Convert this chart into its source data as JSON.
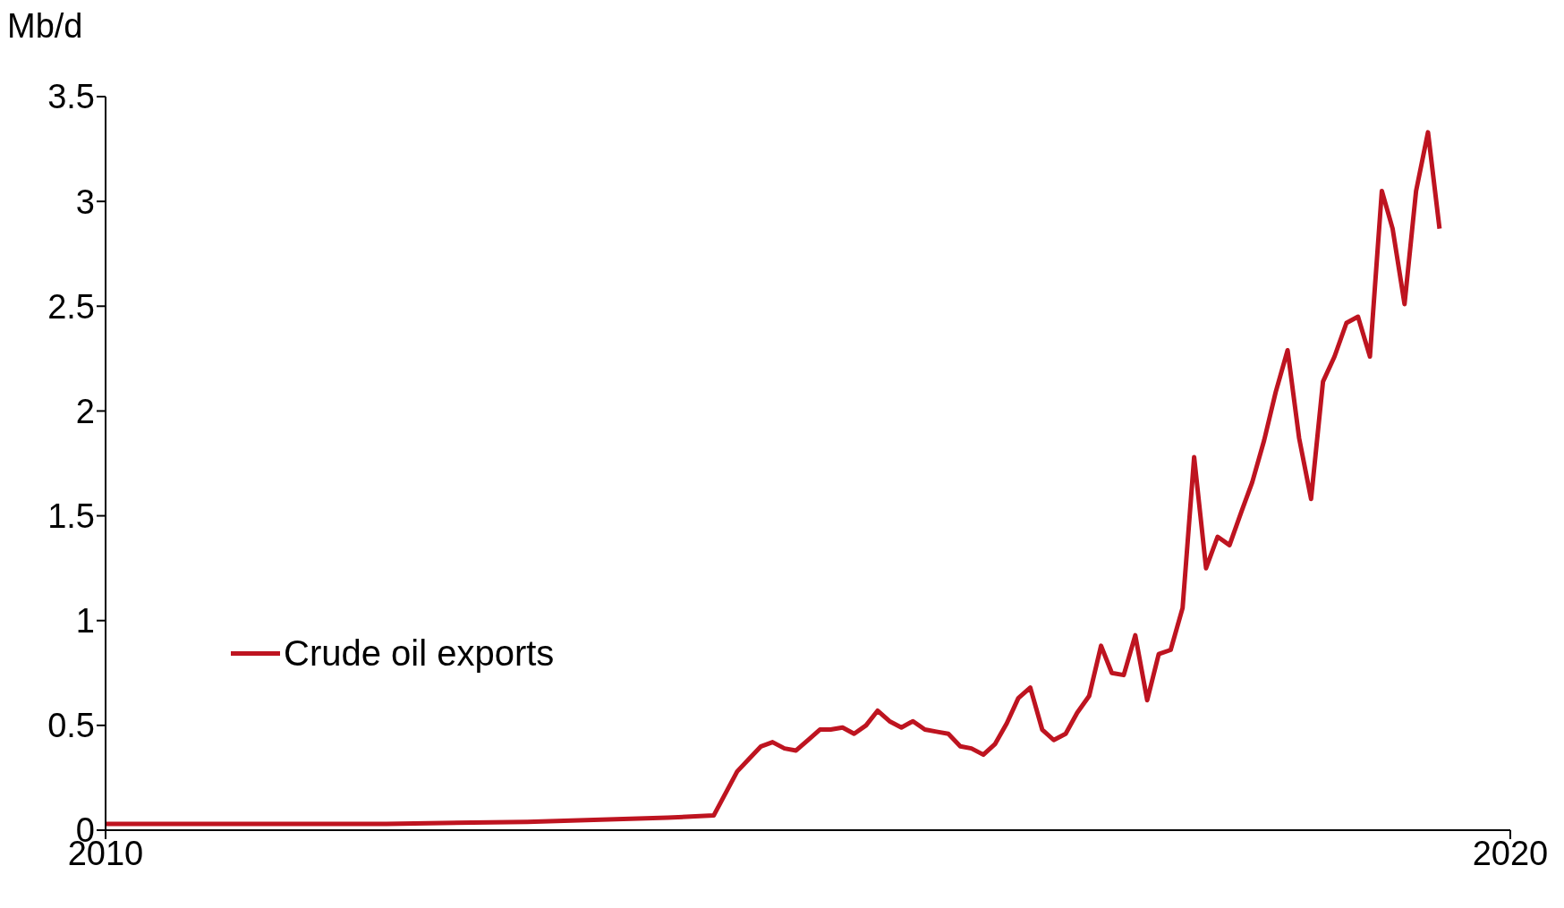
{
  "chart_data": {
    "type": "line",
    "ylabel": "Mb/d",
    "x": [
      "2010-01",
      "2011-01",
      "2012-01",
      "2013-01",
      "2014-01",
      "2014-05",
      "2014-07",
      "2014-08",
      "2014-09",
      "2014-10",
      "2014-11",
      "2014-12",
      "2015-01",
      "2015-02",
      "2015-03",
      "2015-04",
      "2015-05",
      "2015-06",
      "2015-07",
      "2015-08",
      "2015-09",
      "2015-10",
      "2015-11",
      "2015-12",
      "2016-01",
      "2016-02",
      "2016-03",
      "2016-04",
      "2016-05",
      "2016-06",
      "2016-07",
      "2016-08",
      "2016-09",
      "2016-10",
      "2016-11",
      "2016-12",
      "2017-01",
      "2017-02",
      "2017-03",
      "2017-04",
      "2017-05",
      "2017-06",
      "2017-07",
      "2017-08",
      "2017-09",
      "2017-10",
      "2017-11",
      "2017-12",
      "2018-01",
      "2018-02",
      "2018-03",
      "2018-04",
      "2018-05",
      "2018-06",
      "2018-07",
      "2018-08",
      "2018-09",
      "2018-10",
      "2018-11",
      "2018-12",
      "2019-01",
      "2019-02",
      "2019-03",
      "2019-04",
      "2019-05",
      "2019-06",
      "2019-07"
    ],
    "series": [
      {
        "name": "Crude oil exports",
        "color": "#be1420",
        "values": [
          0.03,
          0.03,
          0.03,
          0.04,
          0.06,
          0.07,
          0.28,
          0.34,
          0.4,
          0.42,
          0.39,
          0.38,
          0.43,
          0.48,
          0.48,
          0.49,
          0.46,
          0.5,
          0.57,
          0.52,
          0.49,
          0.52,
          0.48,
          0.47,
          0.46,
          0.4,
          0.39,
          0.36,
          0.41,
          0.51,
          0.63,
          0.68,
          0.48,
          0.43,
          0.46,
          0.56,
          0.64,
          0.88,
          0.75,
          0.74,
          0.93,
          0.62,
          0.84,
          0.86,
          1.06,
          1.78,
          1.25,
          1.4,
          1.36,
          1.52,
          1.66,
          1.86,
          2.09,
          2.29,
          1.87,
          1.58,
          2.14,
          2.26,
          2.42,
          2.45,
          2.26,
          3.05,
          2.87,
          2.51,
          3.05,
          3.33,
          2.87
        ]
      }
    ],
    "xlim": [
      "2010",
      "2020"
    ],
    "xticks": [
      "2010",
      "2020"
    ],
    "ylim": [
      0,
      3.5
    ],
    "yticks": [
      0,
      0.5,
      1,
      1.5,
      2,
      2.5,
      3,
      3.5
    ],
    "grid": false,
    "legend": "left",
    "marker": "none",
    "line_style": "solid"
  }
}
